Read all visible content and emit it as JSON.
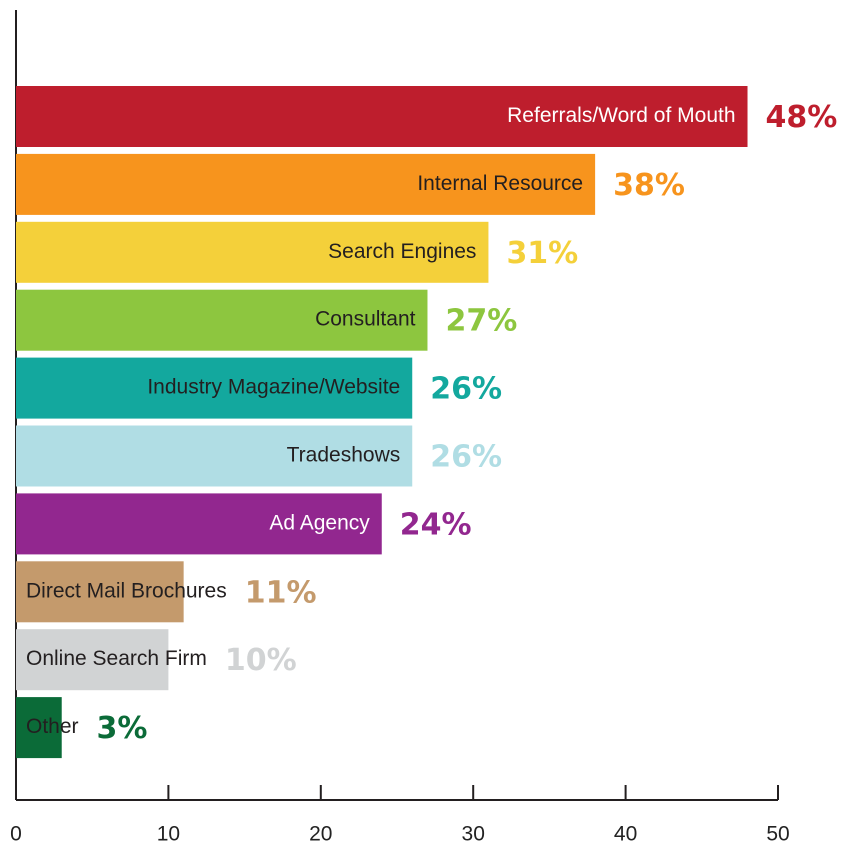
{
  "chart_data": {
    "type": "hbar",
    "categories": [
      "Referrals/Word of Mouth",
      "Internal Resource",
      "Search Engines",
      "Consultant",
      "Industry Magazine/Website",
      "Tradeshows",
      "Ad Agency",
      "Direct Mail Brochures",
      "Online Search Firm",
      "Other"
    ],
    "values": [
      48,
      38,
      31,
      27,
      26,
      26,
      24,
      11,
      10,
      3
    ],
    "value_labels": [
      "48%",
      "38%",
      "31%",
      "27%",
      "26%",
      "26%",
      "24%",
      "11%",
      "10%",
      "3%"
    ],
    "colors": [
      "#be1e2d",
      "#f7941d",
      "#f4d03a",
      "#8dc63f",
      "#13a89e",
      "#b0dde4",
      "#92278f",
      "#c49a6c",
      "#d1d3d4",
      "#0b6b38"
    ],
    "text_colors": [
      "#ffffff",
      "#231f20",
      "#231f20",
      "#231f20",
      "#231f20",
      "#231f20",
      "#ffffff",
      "#231f20",
      "#231f20",
      "#231f20"
    ],
    "xlim": [
      0,
      50
    ],
    "xticks": [
      0,
      10,
      20,
      30,
      40,
      50
    ]
  }
}
